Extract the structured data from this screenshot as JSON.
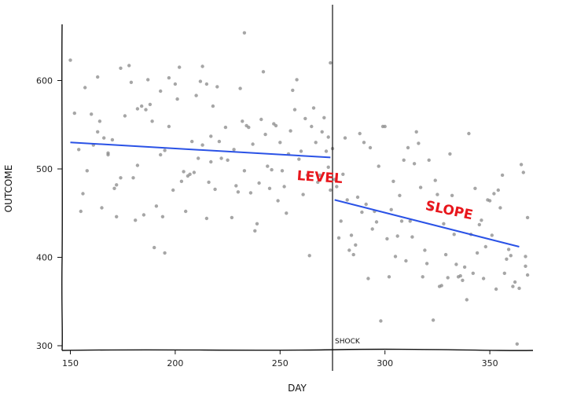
{
  "chart_data": {
    "type": "scatter",
    "xlabel": "DAY",
    "ylabel": "OUTCOME",
    "xlim": [
      140,
      368
    ],
    "ylim": [
      292,
      665
    ],
    "x_ticks": [
      150,
      200,
      250,
      300,
      350
    ],
    "y_ticks": [
      300,
      400,
      500,
      600
    ],
    "grid": false,
    "colors": {
      "points": "#888888",
      "trend": "#2a52e6",
      "annotation": "#e8161c",
      "axis": "#111111"
    },
    "shock": {
      "x": 275,
      "label": "SHOCK"
    },
    "annotations": [
      {
        "text": "LEVEL",
        "x": 258,
        "y": 487
      },
      {
        "text": "SLOPE",
        "x": 319,
        "y": 454
      }
    ],
    "trend_lines": [
      {
        "x": [
          150,
          274
        ],
        "y": [
          530,
          513
        ]
      },
      {
        "x": [
          276,
          364
        ],
        "y": [
          465,
          412
        ]
      }
    ],
    "points": [
      [
        150,
        623
      ],
      [
        152,
        563
      ],
      [
        155,
        452
      ],
      [
        154,
        522
      ],
      [
        157,
        592
      ],
      [
        156,
        472
      ],
      [
        158,
        498
      ],
      [
        160,
        562
      ],
      [
        161,
        527
      ],
      [
        163,
        542
      ],
      [
        163,
        604
      ],
      [
        164,
        554
      ],
      [
        165,
        456
      ],
      [
        166,
        535
      ],
      [
        168,
        518
      ],
      [
        168,
        516
      ],
      [
        170,
        533
      ],
      [
        171,
        478
      ],
      [
        172,
        482
      ],
      [
        172,
        446
      ],
      [
        174,
        490
      ],
      [
        174,
        614
      ],
      [
        176,
        560
      ],
      [
        178,
        617
      ],
      [
        179,
        598
      ],
      [
        180,
        490
      ],
      [
        181,
        442
      ],
      [
        182,
        568
      ],
      [
        182,
        504
      ],
      [
        184,
        571
      ],
      [
        185,
        448
      ],
      [
        186,
        567
      ],
      [
        187,
        601
      ],
      [
        188,
        573
      ],
      [
        189,
        554
      ],
      [
        190,
        411
      ],
      [
        191,
        458
      ],
      [
        193,
        516
      ],
      [
        193,
        588
      ],
      [
        194,
        446
      ],
      [
        195,
        521
      ],
      [
        195,
        405
      ],
      [
        197,
        603
      ],
      [
        197,
        548
      ],
      [
        199,
        476
      ],
      [
        200,
        596
      ],
      [
        201,
        579
      ],
      [
        202,
        615
      ],
      [
        203,
        486
      ],
      [
        204,
        497
      ],
      [
        205,
        452
      ],
      [
        206,
        492
      ],
      [
        207,
        494
      ],
      [
        208,
        531
      ],
      [
        209,
        496
      ],
      [
        210,
        583
      ],
      [
        211,
        512
      ],
      [
        212,
        599
      ],
      [
        213,
        616
      ],
      [
        213,
        527
      ],
      [
        215,
        596
      ],
      [
        215,
        444
      ],
      [
        216,
        485
      ],
      [
        217,
        537
      ],
      [
        217,
        508
      ],
      [
        218,
        571
      ],
      [
        219,
        477
      ],
      [
        220,
        593
      ],
      [
        221,
        531
      ],
      [
        222,
        512
      ],
      [
        224,
        547
      ],
      [
        225,
        510
      ],
      [
        227,
        445
      ],
      [
        228,
        522
      ],
      [
        229,
        481
      ],
      [
        230,
        474
      ],
      [
        231,
        591
      ],
      [
        232,
        554
      ],
      [
        233,
        498
      ],
      [
        233,
        654
      ],
      [
        234,
        549
      ],
      [
        235,
        547
      ],
      [
        236,
        473
      ],
      [
        237,
        528
      ],
      [
        238,
        430
      ],
      [
        239,
        438
      ],
      [
        240,
        484
      ],
      [
        241,
        556
      ],
      [
        242,
        610
      ],
      [
        243,
        539
      ],
      [
        244,
        503
      ],
      [
        245,
        478
      ],
      [
        246,
        499
      ],
      [
        247,
        551
      ],
      [
        248,
        549
      ],
      [
        249,
        464
      ],
      [
        250,
        530
      ],
      [
        251,
        498
      ],
      [
        252,
        480
      ],
      [
        253,
        450
      ],
      [
        254,
        517
      ],
      [
        255,
        543
      ],
      [
        256,
        589
      ],
      [
        257,
        567
      ],
      [
        258,
        601
      ],
      [
        259,
        511
      ],
      [
        260,
        520
      ],
      [
        261,
        471
      ],
      [
        262,
        557
      ],
      [
        263,
        493
      ],
      [
        264,
        402
      ],
      [
        265,
        548
      ],
      [
        266,
        569
      ],
      [
        267,
        530
      ],
      [
        268,
        485
      ],
      [
        269,
        493
      ],
      [
        270,
        542
      ],
      [
        271,
        558
      ],
      [
        272,
        520
      ],
      [
        273,
        502
      ],
      [
        273,
        536
      ],
      [
        274,
        476
      ],
      [
        274,
        620
      ],
      [
        275,
        523
      ],
      [
        276,
        488
      ],
      [
        277,
        480
      ],
      [
        278,
        422
      ],
      [
        279,
        441
      ],
      [
        280,
        494
      ],
      [
        281,
        535
      ],
      [
        282,
        465
      ],
      [
        283,
        408
      ],
      [
        284,
        425
      ],
      [
        285,
        403
      ],
      [
        286,
        414
      ],
      [
        287,
        468
      ],
      [
        288,
        540
      ],
      [
        289,
        451
      ],
      [
        290,
        530
      ],
      [
        291,
        460
      ],
      [
        292,
        376
      ],
      [
        293,
        524
      ],
      [
        294,
        432
      ],
      [
        295,
        452
      ],
      [
        296,
        440
      ],
      [
        297,
        503
      ],
      [
        298,
        328
      ],
      [
        299,
        548
      ],
      [
        300,
        548
      ],
      [
        301,
        421
      ],
      [
        302,
        378
      ],
      [
        303,
        454
      ],
      [
        304,
        486
      ],
      [
        305,
        401
      ],
      [
        306,
        424
      ],
      [
        307,
        470
      ],
      [
        308,
        441
      ],
      [
        309,
        510
      ],
      [
        310,
        396
      ],
      [
        311,
        524
      ],
      [
        312,
        441
      ],
      [
        313,
        423
      ],
      [
        314,
        506
      ],
      [
        315,
        542
      ],
      [
        316,
        529
      ],
      [
        317,
        479
      ],
      [
        318,
        378
      ],
      [
        319,
        408
      ],
      [
        320,
        393
      ],
      [
        321,
        510
      ],
      [
        322,
        455
      ],
      [
        323,
        329
      ],
      [
        324,
        487
      ],
      [
        325,
        471
      ],
      [
        326,
        367
      ],
      [
        327,
        368
      ],
      [
        328,
        438
      ],
      [
        329,
        403
      ],
      [
        330,
        377
      ],
      [
        331,
        517
      ],
      [
        332,
        470
      ],
      [
        333,
        426
      ],
      [
        334,
        392
      ],
      [
        335,
        378
      ],
      [
        336,
        379
      ],
      [
        337,
        374
      ],
      [
        338,
        389
      ],
      [
        339,
        352
      ],
      [
        340,
        540
      ],
      [
        341,
        426
      ],
      [
        342,
        382
      ],
      [
        343,
        478
      ],
      [
        344,
        405
      ],
      [
        345,
        437
      ],
      [
        346,
        442
      ],
      [
        347,
        376
      ],
      [
        348,
        412
      ],
      [
        349,
        465
      ],
      [
        350,
        464
      ],
      [
        351,
        425
      ],
      [
        352,
        472
      ],
      [
        353,
        364
      ],
      [
        354,
        476
      ],
      [
        355,
        456
      ],
      [
        356,
        493
      ],
      [
        357,
        382
      ],
      [
        358,
        398
      ],
      [
        359,
        409
      ],
      [
        360,
        402
      ],
      [
        361,
        367
      ],
      [
        362,
        372
      ],
      [
        363,
        302
      ],
      [
        364,
        365
      ],
      [
        365,
        505
      ],
      [
        366,
        496
      ],
      [
        367,
        390
      ],
      [
        367,
        401
      ],
      [
        368,
        445
      ],
      [
        368,
        380
      ]
    ]
  }
}
